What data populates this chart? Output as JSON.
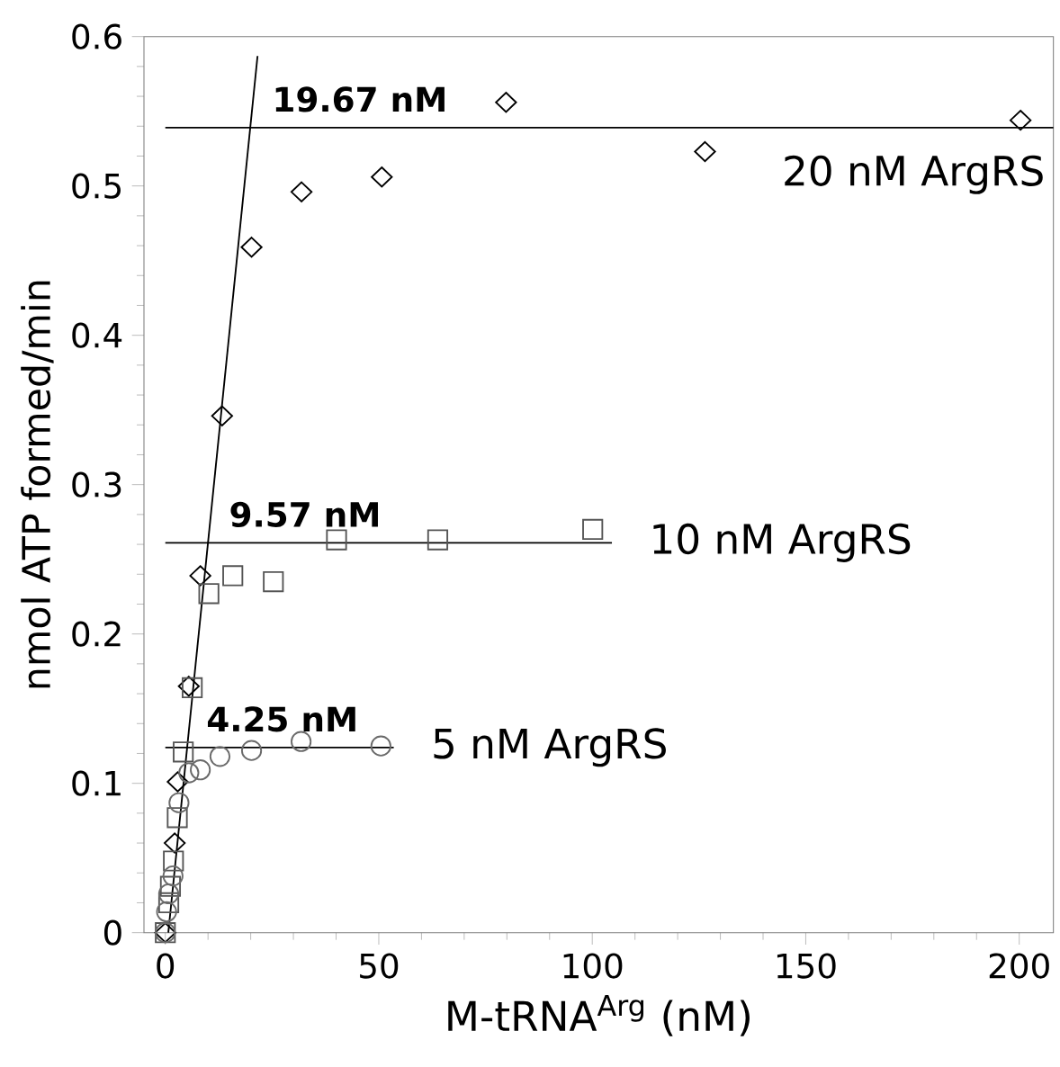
{
  "chart_data": {
    "type": "scatter",
    "xlabel": "M-tRNA$^{Arg}$ (nM)",
    "ylabel": "nmol ATP formed/min",
    "xlim": [
      -5,
      208
    ],
    "ylim": [
      0,
      0.6
    ],
    "xticks": [
      0,
      50,
      100,
      150,
      200
    ],
    "yticks": [
      0,
      0.1,
      0.2,
      0.3,
      0.4,
      0.5,
      0.6
    ],
    "grid": false,
    "legend": false,
    "series": [
      {
        "name": "20 nM ArgRS",
        "color": "#000000",
        "marker": "diamond",
        "x": [
          0,
          2.2,
          2.9,
          5.5,
          8.2,
          13.3,
          20.2,
          31.9,
          50.7,
          79.8,
          126.4,
          200.3
        ],
        "values": [
          0,
          0.06,
          0.101,
          0.165,
          0.239,
          0.346,
          0.459,
          0.496,
          0.506,
          0.556,
          0.523,
          0.544
        ]
      },
      {
        "name": "10 nM ArgRS",
        "color": "#555555",
        "marker": "square",
        "x": [
          0,
          0.8,
          1.2,
          1.9,
          2.8,
          4.2,
          6.3,
          10.2,
          15.8,
          25.3,
          40.1,
          63.8,
          100.1
        ],
        "values": [
          0,
          0.02,
          0.031,
          0.048,
          0.077,
          0.121,
          0.164,
          0.227,
          0.239,
          0.235,
          0.263,
          0.263,
          0.27
        ]
      },
      {
        "name": "5 nM ArgRS",
        "color": "#6a6a6a",
        "marker": "circle",
        "x": [
          0,
          0.3,
          0.8,
          1.8,
          3.2,
          5.5,
          8.2,
          12.8,
          20.2,
          31.8,
          50.5
        ],
        "values": [
          0,
          0.014,
          0.026,
          0.038,
          0.087,
          0.107,
          0.109,
          0.118,
          0.122,
          0.128,
          0.125
        ]
      },
      {
        "type": "line",
        "color": "#000000",
        "x": [
          0.7,
          21.6
        ],
        "values": [
          0,
          0.587
        ]
      },
      {
        "type": "line",
        "color": "#000000",
        "x": [
          0,
          208
        ],
        "values": [
          0.539,
          0.539
        ]
      },
      {
        "type": "line",
        "color": "#000000",
        "x": [
          0,
          104.6
        ],
        "values": [
          0.261,
          0.261
        ]
      },
      {
        "type": "line",
        "color": "#000000",
        "x": [
          0,
          53.5
        ],
        "values": [
          0.124,
          0.124
        ]
      }
    ],
    "annotations": [
      {
        "text": "19.67 nM",
        "x": 19.67,
        "y": 0.539
      },
      {
        "text": "9.57 nM",
        "x": 9.57,
        "y": 0.261
      },
      {
        "text": "4.25 nM",
        "x": 4.25,
        "y": 0.124
      }
    ]
  }
}
